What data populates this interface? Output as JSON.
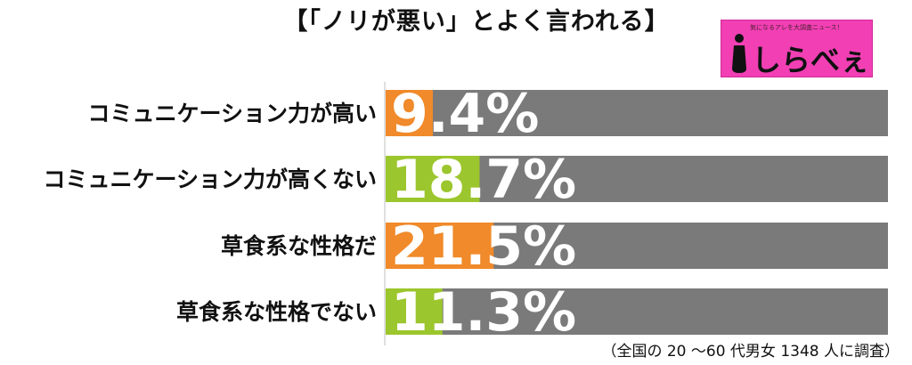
{
  "title": "【「ノリが悪い」とよく言われる】",
  "logo": {
    "tagline": "気になるアレを大調査ニュース！",
    "name": "しらべぇ",
    "icon": "i-logo-icon",
    "background_color": "#f23fb4"
  },
  "footnote": "（全国の 20 〜60 代男女 1348 人に調査）",
  "colors": {
    "orange": "#f08a2a",
    "green": "#9cc62d",
    "gray": "#7a7a7a",
    "axis": "#bfbfbf",
    "value_text": "#ffffff"
  },
  "chart_data": {
    "type": "bar",
    "orientation": "horizontal",
    "categories": [
      "コミュニケーション力が高い",
      "コミュニケーション力が高くない",
      "草食系な性格だ",
      "草食系な性格でない"
    ],
    "values": [
      9.4,
      18.7,
      21.5,
      11.3
    ],
    "value_labels": [
      "9.4%",
      "18.7%",
      "21.5%",
      "11.3%"
    ],
    "bar_colors": [
      "orange",
      "green",
      "orange",
      "green"
    ],
    "xlim": [
      0,
      100
    ],
    "unit": "%",
    "grid": false,
    "legend": false
  }
}
